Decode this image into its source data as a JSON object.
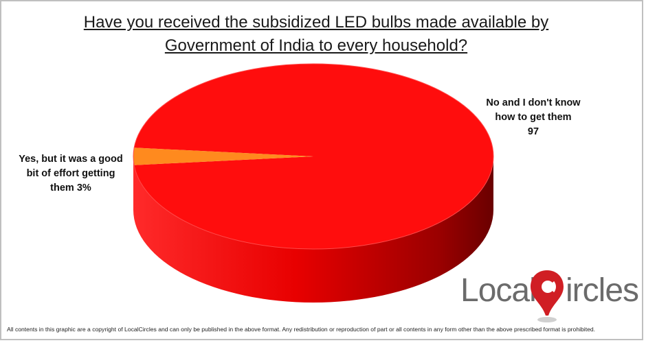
{
  "chart_data": {
    "type": "pie",
    "title_lines": [
      "Have you received the subsidized LED bulbs made available by",
      "Government of India to every household?"
    ],
    "slices": [
      {
        "label_lines": [
          "No and I don't know",
          "how to get them",
          "97"
        ],
        "value": 97,
        "color": "#ff0d0d",
        "side_color_dark": "#7a0000"
      },
      {
        "label_lines": [
          "Yes, but it was a good",
          "bit of effort getting",
          "them  3%"
        ],
        "value": 3,
        "color": "#ff8a1e",
        "side_color_dark": "#b35c00"
      }
    ],
    "style": "3d-pie",
    "legend": "none"
  },
  "logo": {
    "part1": "Local",
    "part2": "ircles",
    "accent": "#d01e24"
  },
  "footer": "All contents in this graphic are a copyright of LocalCircles and can only be published in the above format. Any redistribution or reproduction of part or all contents in any form other than the above prescribed format is prohibited."
}
